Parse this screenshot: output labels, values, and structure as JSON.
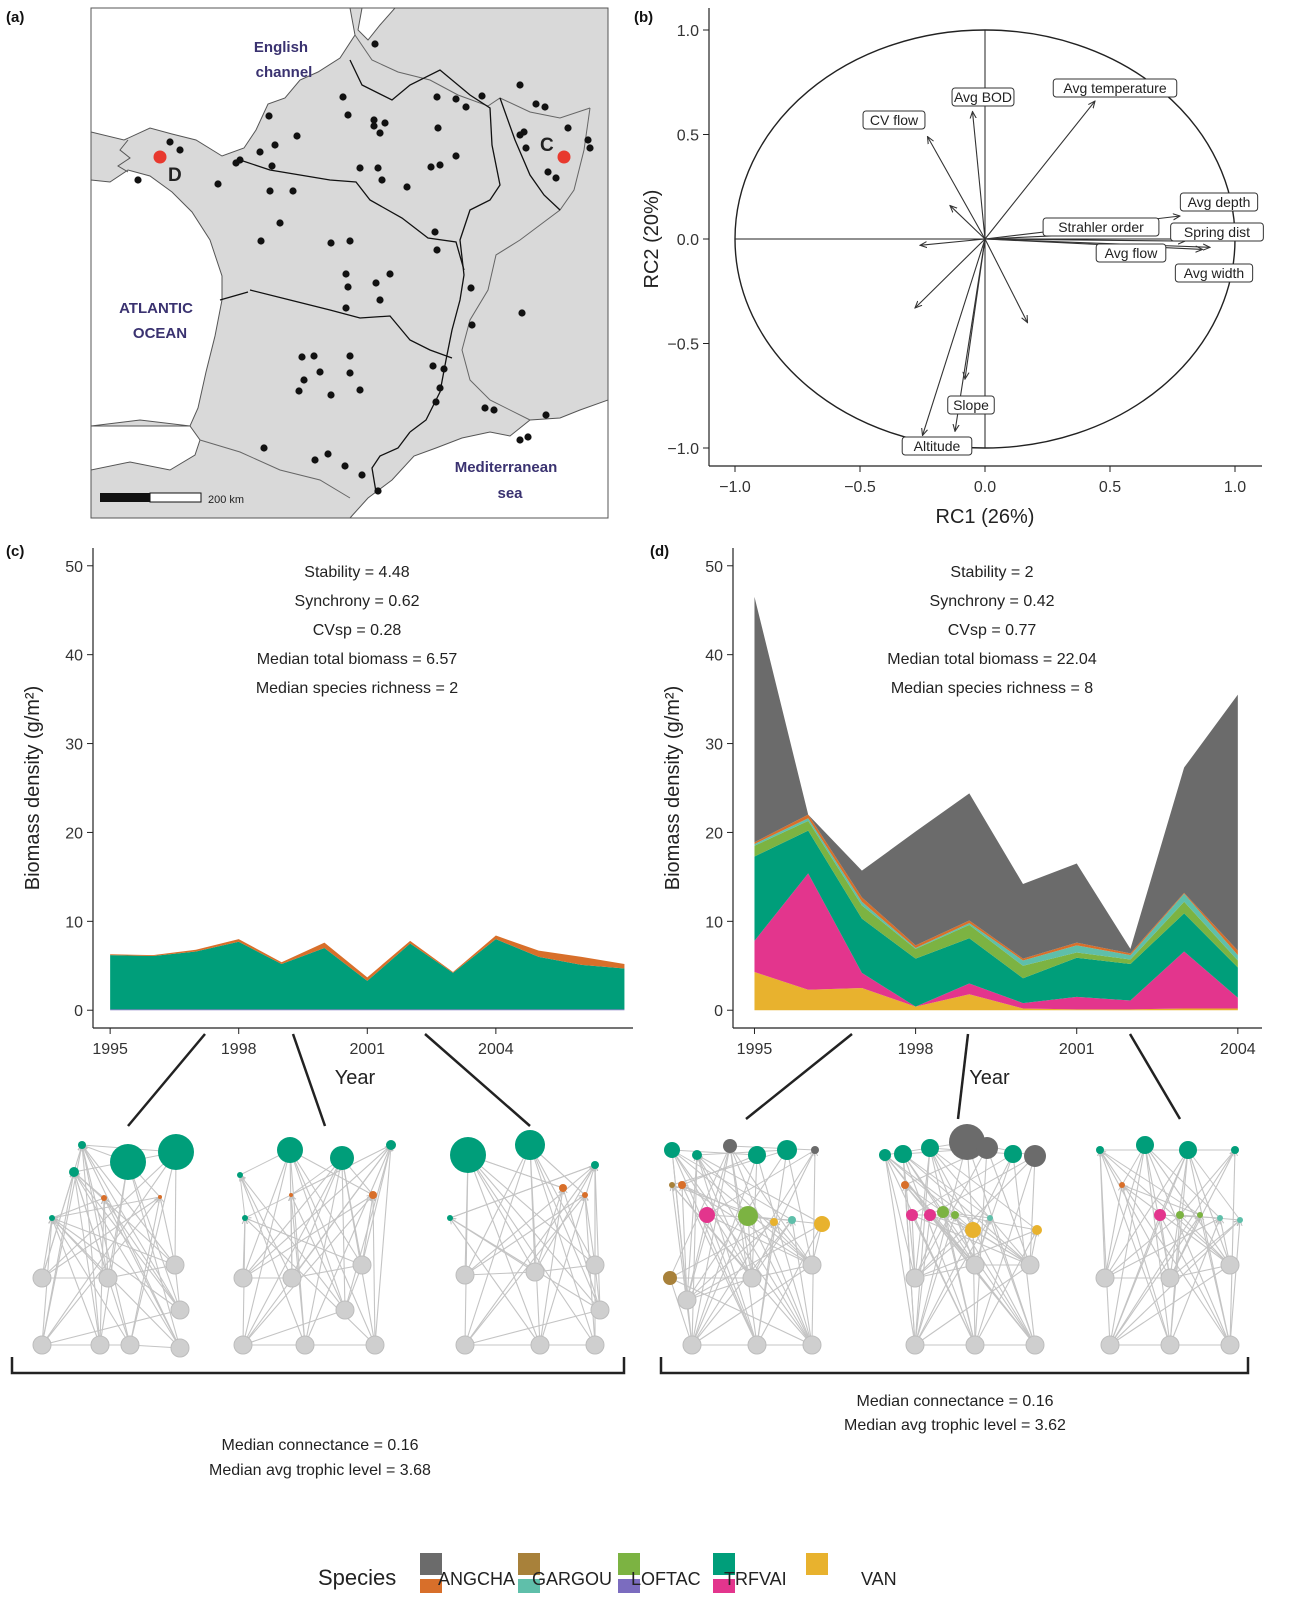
{
  "panels": {
    "a": {
      "letter": "(a)",
      "labels": {
        "channel_1": "English",
        "channel_2": "channel",
        "atlantic_1": "ATLANTIC",
        "atlantic_2": "OCEAN",
        "med_1": "Mediterranean",
        "med_2": "sea",
        "site_c": "C",
        "site_d": "D",
        "scale": "200 km"
      },
      "colors": {
        "land": "#d9d9d9",
        "sea": "#ffffff",
        "site": "#111111",
        "highlight": "#e8392e"
      }
    },
    "b": {
      "letter": "(b)"
    },
    "c": {
      "letter": "(c)",
      "stats": [
        "Stability = 4.48",
        "Synchrony = 0.62",
        "CVsp = 0.28",
        "Median total biomass = 6.57",
        "Median species richness = 2"
      ],
      "network_stats": [
        "Median connectance = 0.16",
        "Median avg trophic level = 3.68"
      ]
    },
    "d": {
      "letter": "(d)",
      "stats": [
        "Stability = 2",
        "Synchrony = 0.42",
        "CVsp = 0.77",
        "Median total biomass = 22.04",
        "Median species richness = 8"
      ],
      "network_stats": [
        "Median connectance = 0.16",
        "Median avg trophic level = 3.62"
      ]
    }
  },
  "legend": {
    "title": "Species",
    "items": [
      {
        "label": "ANGCHA",
        "colors": [
          "#6b6b6b",
          "#d86f2a"
        ]
      },
      {
        "label": "GARGOU",
        "colors": [
          "#a8813a",
          "#5fbfaa"
        ]
      },
      {
        "label": "LOFTAC",
        "colors": [
          "#7cb342",
          "#7b6cbf"
        ]
      },
      {
        "label": "TRFVAI",
        "colors": [
          "#009e7a",
          "#e3358d"
        ]
      },
      {
        "label": "VAN",
        "colors": [
          "#e8b22e",
          null
        ]
      }
    ]
  },
  "chart_data": [
    {
      "id": "b",
      "type": "scatter",
      "subtype": "biplot",
      "xlabel": "RC1 (26%)",
      "ylabel": "RC2 (20%)",
      "xlim": [
        -1.1,
        1.05
      ],
      "ylim": [
        -1.1,
        1.08
      ],
      "xticks": [
        -1.0,
        -0.5,
        0.0,
        0.5,
        1.0
      ],
      "yticks": [
        -1.0,
        -0.5,
        0.0,
        0.5,
        1.0
      ],
      "x_tick_labels": [
        "−1.0",
        "−0.5",
        "0.0",
        "0.5",
        "1.0"
      ],
      "y_tick_labels": [
        "−1.0",
        "−0.5",
        "0.0",
        "0.5",
        "1.0"
      ],
      "grid": false,
      "vectors": [
        {
          "label": "Avg temperature",
          "x": 0.44,
          "y": 0.66
        },
        {
          "label": "Avg BOD",
          "x": -0.05,
          "y": 0.61
        },
        {
          "label": "CV flow",
          "x": -0.23,
          "y": 0.49
        },
        {
          "label": "Avg depth",
          "x": 0.78,
          "y": 0.11
        },
        {
          "label": "Strahler order",
          "x": 0.55,
          "y": 0.03
        },
        {
          "label": "Spring dist",
          "x": 0.8,
          "y": -0.01
        },
        {
          "label": "Avg flow",
          "x": 0.87,
          "y": -0.05
        },
        {
          "label": "Avg width",
          "x": 0.9,
          "y": -0.04
        },
        {
          "label": "Slope",
          "x": -0.12,
          "y": -0.92
        },
        {
          "label": "Altitude",
          "x": -0.25,
          "y": -0.94
        },
        {
          "label": "",
          "x": -0.14,
          "y": 0.16
        },
        {
          "label": "",
          "x": -0.26,
          "y": -0.03
        },
        {
          "label": "",
          "x": -0.28,
          "y": -0.33
        },
        {
          "label": "",
          "x": 0.17,
          "y": -0.4
        },
        {
          "label": "",
          "x": -0.08,
          "y": -0.67
        }
      ]
    },
    {
      "id": "c",
      "type": "area",
      "stacked": true,
      "xlabel": "Year",
      "ylabel": "Biomass density (g/m²)",
      "xlim": [
        1994.6,
        2007.2
      ],
      "ylim": [
        -2,
        52
      ],
      "xticks": [
        1995,
        1998,
        2001,
        2004
      ],
      "yticks": [
        0,
        10,
        20,
        30,
        40,
        50
      ],
      "x": [
        1995,
        1996,
        1997,
        1998,
        1999,
        2000,
        2001,
        2002,
        2003,
        2004,
        2005,
        2006,
        2007
      ],
      "series": [
        {
          "name": "LOFTAC",
          "color": "#7b6cbf",
          "values": [
            0.1,
            0.1,
            0.1,
            0.1,
            0.1,
            0.1,
            0.1,
            0.1,
            0.1,
            0.1,
            0.1,
            0.1,
            0.1
          ]
        },
        {
          "name": "TRFVAI",
          "color": "#009e7a",
          "values": [
            6.1,
            6.0,
            6.5,
            7.6,
            5.1,
            6.9,
            3.2,
            7.4,
            4.1,
            7.9,
            5.9,
            5.0,
            4.6
          ]
        },
        {
          "name": "ANGCHA",
          "color": "#d86f2a",
          "values": [
            0.1,
            0.1,
            0.2,
            0.3,
            0.2,
            0.6,
            0.4,
            0.3,
            0.1,
            0.4,
            0.7,
            0.9,
            0.5
          ]
        }
      ]
    },
    {
      "id": "d",
      "type": "area",
      "stacked": true,
      "xlabel": "Year",
      "ylabel": "Biomass density (g/m²)",
      "xlim": [
        1994.6,
        2004.45
      ],
      "ylim": [
        -2,
        52
      ],
      "xticks": [
        1995,
        1998,
        2001,
        2004
      ],
      "yticks": [
        0,
        10,
        20,
        30,
        40,
        50
      ],
      "x": [
        1995,
        1996,
        1997,
        1998,
        1999,
        2000,
        2001,
        2002,
        2003,
        2004
      ],
      "series": [
        {
          "name": "VAN",
          "color": "#e8b22e",
          "values": [
            4.3,
            2.3,
            2.5,
            0.4,
            1.8,
            0.2,
            0.1,
            0.1,
            0.2,
            0.2
          ]
        },
        {
          "name": "TRFVAI",
          "color": "#e3358d",
          "values": [
            3.5,
            13.1,
            1.7,
            0.0,
            1.2,
            0.6,
            1.4,
            1.0,
            6.4,
            1.2
          ]
        },
        {
          "name": "TRFVAI",
          "color": "#009e7a",
          "values": [
            9.5,
            4.8,
            6.1,
            5.4,
            5.1,
            2.8,
            4.4,
            4.1,
            4.3,
            3.4
          ]
        },
        {
          "name": "LOFTAC",
          "color": "#7cb342",
          "values": [
            1.2,
            1.1,
            1.5,
            1.1,
            1.5,
            1.4,
            0.6,
            0.5,
            1.3,
            0.8
          ]
        },
        {
          "name": "GARGOU",
          "color": "#5fbfaa",
          "values": [
            0.2,
            0.3,
            0.4,
            0.1,
            0.2,
            0.6,
            0.8,
            0.5,
            0.9,
            0.6
          ]
        },
        {
          "name": "ANGCHA",
          "color": "#d86f2a",
          "values": [
            0.2,
            0.4,
            0.5,
            0.3,
            0.3,
            0.2,
            0.3,
            0.2,
            0.1,
            0.5
          ]
        },
        {
          "name": "ANGCHA",
          "color": "#6b6b6b",
          "values": [
            27.6,
            0.0,
            3.0,
            12.8,
            14.3,
            8.4,
            8.9,
            0.5,
            14.1,
            28.8
          ]
        }
      ]
    }
  ]
}
